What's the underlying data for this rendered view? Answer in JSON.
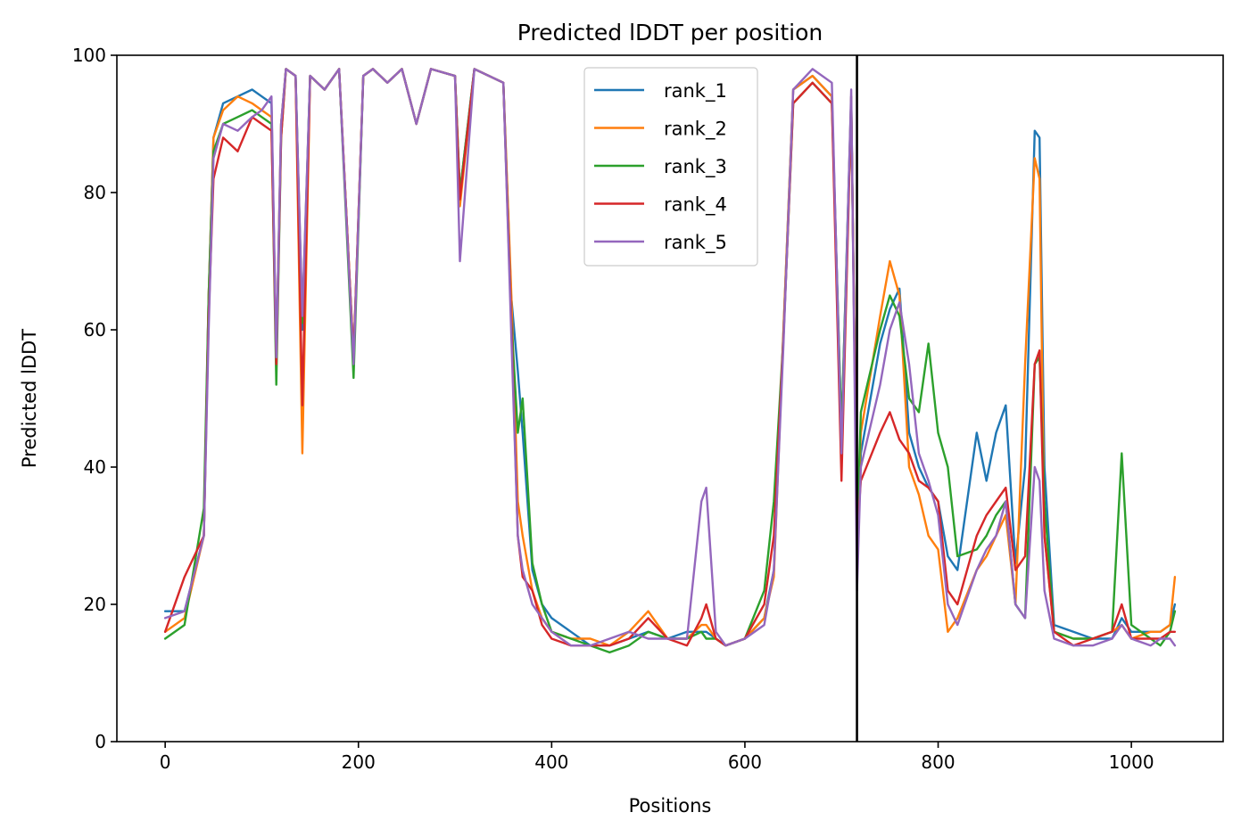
{
  "chart_data": {
    "type": "line",
    "title": "Predicted lDDT per position",
    "xlabel": "Positions",
    "ylabel": "Predicted lDDT",
    "xlim": [
      -50,
      1095
    ],
    "ylim": [
      0,
      100
    ],
    "xticks": [
      0,
      200,
      400,
      600,
      800,
      1000
    ],
    "yticks": [
      0,
      20,
      40,
      60,
      80,
      100
    ],
    "grid": false,
    "legend_position": "top-center",
    "vertical_line": {
      "x": 716,
      "color": "#000000"
    },
    "x": [
      0,
      20,
      40,
      45,
      50,
      60,
      75,
      90,
      100,
      110,
      115,
      120,
      125,
      135,
      142,
      150,
      165,
      180,
      195,
      205,
      215,
      230,
      245,
      260,
      275,
      300,
      305,
      320,
      335,
      350,
      358,
      365,
      370,
      380,
      390,
      400,
      420,
      440,
      460,
      480,
      500,
      520,
      540,
      555,
      560,
      570,
      580,
      600,
      620,
      630,
      640,
      650,
      670,
      690,
      700,
      710,
      716,
      720,
      740,
      750,
      760,
      770,
      780,
      790,
      800,
      810,
      820,
      840,
      850,
      860,
      870,
      880,
      890,
      900,
      905,
      910,
      920,
      940,
      960,
      980,
      990,
      1000,
      1020,
      1030,
      1040,
      1045
    ],
    "series": [
      {
        "name": "rank_1",
        "color": "#1f77b4",
        "values": [
          19,
          19,
          30,
          65,
          88,
          93,
          94,
          95,
          94,
          93,
          55,
          90,
          98,
          97,
          60,
          97,
          95,
          98,
          56,
          97,
          98,
          96,
          98,
          90,
          98,
          97,
          80,
          98,
          97,
          96,
          65,
          54,
          45,
          25,
          20,
          18,
          16,
          14,
          14,
          15,
          16,
          15,
          16,
          16,
          16,
          15,
          14,
          15,
          18,
          25,
          60,
          95,
          97,
          94,
          45,
          94,
          30,
          42,
          58,
          63,
          66,
          45,
          40,
          37,
          35,
          27,
          25,
          45,
          38,
          45,
          49,
          26,
          40,
          89,
          88,
          40,
          17,
          16,
          15,
          15,
          18,
          16,
          16,
          16,
          17,
          20
        ]
      },
      {
        "name": "rank_2",
        "color": "#ff7f0e",
        "values": [
          16,
          18,
          30,
          65,
          88,
          92,
          94,
          93,
          92,
          91,
          56,
          90,
          98,
          97,
          42,
          97,
          95,
          98,
          56,
          97,
          98,
          96,
          98,
          90,
          98,
          97,
          78,
          98,
          97,
          96,
          66,
          35,
          30,
          22,
          18,
          16,
          15,
          15,
          14,
          16,
          19,
          15,
          15,
          17,
          17,
          15,
          14,
          15,
          18,
          24,
          60,
          95,
          97,
          94,
          42,
          94,
          30,
          45,
          62,
          70,
          65,
          40,
          36,
          30,
          28,
          16,
          18,
          25,
          27,
          30,
          33,
          20,
          55,
          85,
          82,
          30,
          16,
          15,
          15,
          16,
          17,
          15,
          16,
          16,
          17,
          24
        ]
      },
      {
        "name": "rank_3",
        "color": "#2ca02c",
        "values": [
          15,
          17,
          34,
          65,
          86,
          90,
          91,
          92,
          91,
          90,
          52,
          88,
          98,
          97,
          61,
          97,
          95,
          98,
          53,
          97,
          98,
          96,
          98,
          90,
          98,
          97,
          80,
          98,
          97,
          96,
          62,
          45,
          50,
          26,
          20,
          16,
          15,
          14,
          13,
          14,
          16,
          15,
          15,
          16,
          15,
          15,
          14,
          15,
          22,
          35,
          59,
          93,
          96,
          93,
          45,
          93,
          30,
          48,
          60,
          65,
          62,
          50,
          48,
          58,
          45,
          40,
          27,
          28,
          30,
          33,
          35,
          20,
          18,
          55,
          56,
          35,
          16,
          15,
          15,
          16,
          42,
          17,
          15,
          14,
          16,
          19
        ]
      },
      {
        "name": "rank_4",
        "color": "#d62728",
        "values": [
          16,
          24,
          30,
          62,
          82,
          88,
          86,
          91,
          90,
          89,
          55,
          88,
          98,
          97,
          49,
          97,
          95,
          98,
          56,
          97,
          98,
          96,
          98,
          90,
          98,
          97,
          79,
          98,
          97,
          96,
          62,
          30,
          24,
          22,
          17,
          15,
          14,
          14,
          14,
          15,
          18,
          15,
          14,
          18,
          20,
          15,
          14,
          15,
          20,
          30,
          59,
          93,
          96,
          93,
          38,
          93,
          30,
          38,
          45,
          48,
          44,
          42,
          38,
          37,
          35,
          22,
          20,
          30,
          33,
          35,
          37,
          25,
          27,
          55,
          57,
          30,
          16,
          14,
          15,
          16,
          20,
          15,
          15,
          15,
          16,
          16
        ]
      },
      {
        "name": "rank_5",
        "color": "#9467bd",
        "values": [
          18,
          19,
          30,
          60,
          85,
          90,
          89,
          91,
          92,
          94,
          56,
          90,
          98,
          97,
          62,
          97,
          95,
          98,
          55,
          97,
          98,
          96,
          98,
          90,
          98,
          97,
          70,
          98,
          97,
          96,
          60,
          30,
          25,
          20,
          18,
          16,
          14,
          14,
          15,
          16,
          15,
          15,
          15,
          35,
          37,
          16,
          14,
          15,
          17,
          25,
          58,
          95,
          98,
          96,
          42,
          95,
          22,
          40,
          52,
          60,
          64,
          55,
          42,
          38,
          33,
          20,
          17,
          25,
          28,
          30,
          35,
          20,
          18,
          40,
          38,
          22,
          15,
          14,
          14,
          15,
          17,
          15,
          14,
          15,
          15,
          14
        ]
      }
    ]
  }
}
